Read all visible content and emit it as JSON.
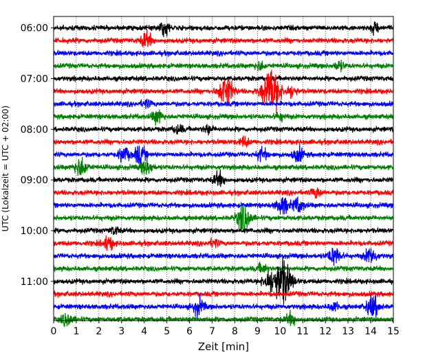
{
  "chart_data": {
    "type": "line",
    "subtype": "helicorder",
    "xlabel": "Zeit  [min]",
    "ylabel": "UTC (Lokalzeit = UTC + 02:00)",
    "xlim": [
      0,
      15
    ],
    "x_ticks": [
      0,
      1,
      2,
      3,
      4,
      5,
      6,
      7,
      8,
      9,
      10,
      11,
      12,
      13,
      14,
      15
    ],
    "y_tick_labels": [
      "06:00",
      "07:00",
      "08:00",
      "09:00",
      "10:00",
      "11:00"
    ],
    "grid": "vertical-dotted",
    "trace_colors": [
      "#000000",
      "#ff0000",
      "#0000ff",
      "#008000"
    ],
    "traces": [
      {
        "start": "06:00",
        "color": "#000000",
        "events": [
          [
            4.9,
            0.9
          ],
          [
            14.2,
            0.6
          ]
        ]
      },
      {
        "start": "06:15",
        "color": "#ff0000",
        "events": [
          [
            4.1,
            1.0
          ]
        ]
      },
      {
        "start": "06:30",
        "color": "#0000ff",
        "events": []
      },
      {
        "start": "06:45",
        "color": "#008000",
        "events": [
          [
            9.1,
            0.6
          ],
          [
            12.6,
            0.6
          ]
        ]
      },
      {
        "start": "07:00",
        "color": "#000000",
        "events": []
      },
      {
        "start": "07:15",
        "color": "#ff0000",
        "events": [
          [
            7.6,
            2.0
          ],
          [
            9.6,
            3.0
          ],
          [
            10.5,
            0.7
          ]
        ]
      },
      {
        "start": "07:30",
        "color": "#0000ff",
        "events": [
          [
            4.1,
            0.5
          ]
        ]
      },
      {
        "start": "07:45",
        "color": "#008000",
        "events": [
          [
            4.6,
            0.9
          ],
          [
            10.0,
            0.5
          ]
        ]
      },
      {
        "start": "08:00",
        "color": "#000000",
        "events": [
          [
            5.5,
            0.6
          ],
          [
            6.8,
            0.5
          ]
        ]
      },
      {
        "start": "08:15",
        "color": "#ff0000",
        "events": [
          [
            8.4,
            0.6
          ]
        ]
      },
      {
        "start": "08:30",
        "color": "#0000ff",
        "events": [
          [
            3.1,
            0.9
          ],
          [
            3.8,
            1.2
          ],
          [
            9.2,
            0.8
          ],
          [
            10.8,
            0.9
          ]
        ]
      },
      {
        "start": "08:45",
        "color": "#008000",
        "events": [
          [
            1.2,
            1.3
          ],
          [
            4.1,
            1.1
          ]
        ]
      },
      {
        "start": "09:00",
        "color": "#000000",
        "events": [
          [
            7.3,
            0.9
          ]
        ]
      },
      {
        "start": "09:15",
        "color": "#ff0000",
        "events": [
          [
            11.6,
            0.7
          ]
        ]
      },
      {
        "start": "09:30",
        "color": "#0000ff",
        "events": [
          [
            10.1,
            1.2
          ],
          [
            10.8,
            1.0
          ]
        ]
      },
      {
        "start": "09:45",
        "color": "#008000",
        "events": [
          [
            8.4,
            1.8
          ]
        ]
      },
      {
        "start": "10:00",
        "color": "#000000",
        "events": [
          [
            2.7,
            0.5
          ]
        ]
      },
      {
        "start": "10:15",
        "color": "#ff0000",
        "events": [
          [
            2.4,
            0.9
          ],
          [
            7.1,
            0.5
          ]
        ]
      },
      {
        "start": "10:30",
        "color": "#0000ff",
        "events": [
          [
            12.4,
            1.2
          ],
          [
            14.0,
            1.1
          ]
        ]
      },
      {
        "start": "10:45",
        "color": "#008000",
        "events": [
          [
            9.2,
            0.6
          ]
        ]
      },
      {
        "start": "11:00",
        "color": "#000000",
        "events": [
          [
            10.1,
            3.0
          ],
          [
            9.5,
            1.2
          ]
        ]
      },
      {
        "start": "11:15",
        "color": "#ff0000",
        "events": []
      },
      {
        "start": "11:30",
        "color": "#0000ff",
        "events": [
          [
            6.4,
            1.1
          ],
          [
            14.1,
            1.4
          ],
          [
            12.4,
            0.6
          ]
        ]
      },
      {
        "start": "11:45",
        "color": "#008000",
        "events": [
          [
            0.6,
            0.9
          ],
          [
            10.5,
            0.8
          ]
        ]
      }
    ]
  }
}
